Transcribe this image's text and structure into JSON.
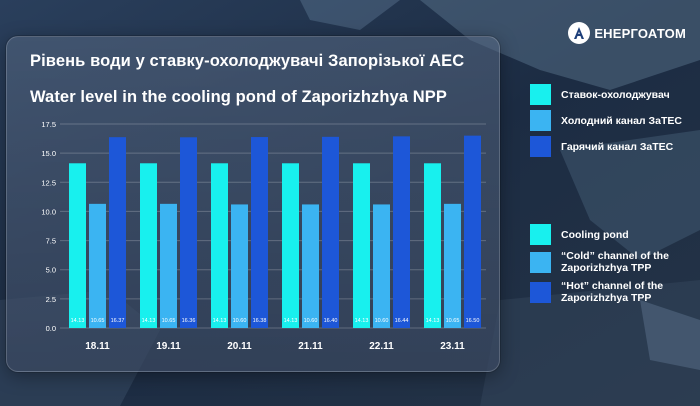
{
  "brand": {
    "name": "ЕНЕРГОАТОМ",
    "logo_icon": "energoatom-logo-icon"
  },
  "titles": {
    "uk": "Рівень води у ставку-охолоджувачі Запорізької АЕС",
    "en": "Water level in the cooling pond of Zaporizhzhya NPP"
  },
  "colors": {
    "cooling_pond": "#18f0ee",
    "cold_channel": "#3bb4f2",
    "hot_channel": "#1d57d8"
  },
  "legend_uk": [
    {
      "label": "Ставок-охолоджувач",
      "color": "#18f0ee"
    },
    {
      "label": "Холодний канал ЗаТЕС",
      "color": "#3bb4f2"
    },
    {
      "label": "Гарячий канал ЗаТЕС",
      "color": "#1d57d8"
    }
  ],
  "legend_en": [
    {
      "label": "Cooling pond",
      "color": "#18f0ee"
    },
    {
      "label": "“Cold” channel of the Zaporizhzhya TPP",
      "color": "#3bb4f2"
    },
    {
      "label": "“Hot” channel of the Zaporizhzhya TPP",
      "color": "#1d57d8"
    }
  ],
  "chart_data": {
    "type": "bar",
    "title": "Water level in the cooling pond of Zaporizhzhya NPP",
    "categories": [
      "18.11",
      "19.11",
      "20.11",
      "21.11",
      "22.11",
      "23.11"
    ],
    "series": [
      {
        "name": "Cooling pond",
        "color": "#18f0ee",
        "values": [
          14.13,
          14.13,
          14.13,
          14.13,
          14.13,
          14.13
        ]
      },
      {
        "name": "“Cold” channel of the Zaporizhzhya TPP",
        "color": "#3bb4f2",
        "values": [
          10.65,
          10.65,
          10.6,
          10.6,
          10.6,
          10.65
        ]
      },
      {
        "name": "“Hot” channel of the Zaporizhzhya TPP",
        "color": "#1d57d8",
        "values": [
          16.37,
          16.36,
          16.38,
          16.4,
          16.44,
          16.5
        ]
      }
    ],
    "data_labels": [
      [
        "14.13",
        "10.65",
        "16.37"
      ],
      [
        "14.13",
        "10.65",
        "16.36"
      ],
      [
        "14.13",
        "10.60",
        "16.38"
      ],
      [
        "14.13",
        "10.60",
        "16.40"
      ],
      [
        "14.13",
        "10.60",
        "16.44"
      ],
      [
        "14.13",
        "10.65",
        "16.50"
      ]
    ],
    "yticks": [
      "0.0",
      "2.5",
      "5.0",
      "7.5",
      "10.0",
      "12.5",
      "15.0",
      "17.5"
    ],
    "ylim": [
      0,
      17.5
    ],
    "grid": true,
    "legend": "right"
  }
}
